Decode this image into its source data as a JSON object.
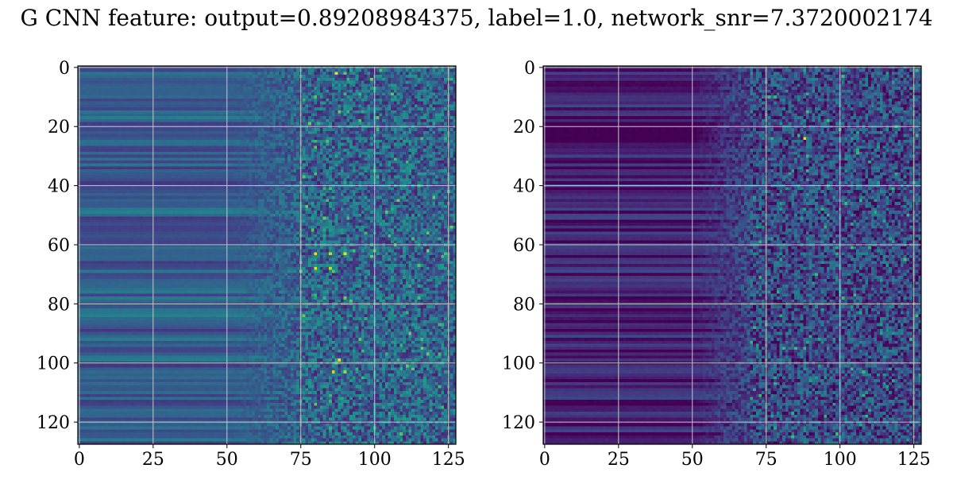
{
  "figure_title": "G CNN feature: output=0.89208984375, label=1.0, network_snr=7.3720002174",
  "chart_data": [
    {
      "type": "heatmap",
      "colormap": "viridis",
      "grid": true,
      "rows": 128,
      "cols": 128,
      "xlim": [
        0,
        127
      ],
      "ylim": [
        127,
        0
      ],
      "xticks": [
        0,
        25,
        50,
        75,
        100,
        125
      ],
      "yticks": [
        0,
        20,
        40,
        60,
        80,
        100,
        120
      ],
      "xtick_labels": [
        "0",
        "25",
        "50",
        "75",
        "100",
        "125"
      ],
      "ytick_labels": [
        "0",
        "20",
        "40",
        "60",
        "80",
        "100",
        "120"
      ],
      "value_range": [
        0,
        1
      ],
      "description_values": {
        "smooth_region_cols": [
          0,
          50
        ],
        "smooth_region_mean": 0.3,
        "noisy_region_cols": [
          75,
          127
        ],
        "noisy_region_mean": 0.32,
        "hot_spots": [
          {
            "row": 2,
            "col": 87,
            "value": 0.95
          },
          {
            "row": 63,
            "col": 80,
            "value": 0.95
          },
          {
            "row": 63,
            "col": 85,
            "value": 0.9
          },
          {
            "row": 63,
            "col": 90,
            "value": 0.95
          },
          {
            "row": 68,
            "col": 80,
            "value": 0.95
          },
          {
            "row": 68,
            "col": 85,
            "value": 0.9
          },
          {
            "row": 99,
            "col": 88,
            "value": 0.95
          },
          {
            "row": 103,
            "col": 86,
            "value": 0.9
          },
          {
            "row": 103,
            "col": 90,
            "value": 0.85
          }
        ]
      }
    },
    {
      "type": "heatmap",
      "colormap": "viridis",
      "grid": true,
      "rows": 128,
      "cols": 128,
      "xlim": [
        0,
        127
      ],
      "ylim": [
        127,
        0
      ],
      "xticks": [
        0,
        25,
        50,
        75,
        100,
        125
      ],
      "yticks": [
        0,
        20,
        40,
        60,
        80,
        100,
        120
      ],
      "xtick_labels": [
        "0",
        "25",
        "50",
        "75",
        "100",
        "125"
      ],
      "ytick_labels": [
        "0",
        "20",
        "40",
        "60",
        "80",
        "100",
        "120"
      ],
      "value_range": [
        0,
        1
      ],
      "description_values": {
        "smooth_region_cols": [
          0,
          50
        ],
        "smooth_region_mean": 0.08,
        "noisy_region_cols": [
          70,
          127
        ],
        "noisy_region_mean": 0.22,
        "hot_spots": [
          {
            "row": 15,
            "col": 89,
            "value": 0.7
          },
          {
            "row": 24,
            "col": 88,
            "value": 0.95
          },
          {
            "row": 35,
            "col": 89,
            "value": 0.65
          },
          {
            "row": 38,
            "col": 89,
            "value": 0.6
          },
          {
            "row": 59,
            "col": 118,
            "value": 0.6
          },
          {
            "row": 93,
            "col": 89,
            "value": 0.6
          }
        ]
      }
    }
  ]
}
